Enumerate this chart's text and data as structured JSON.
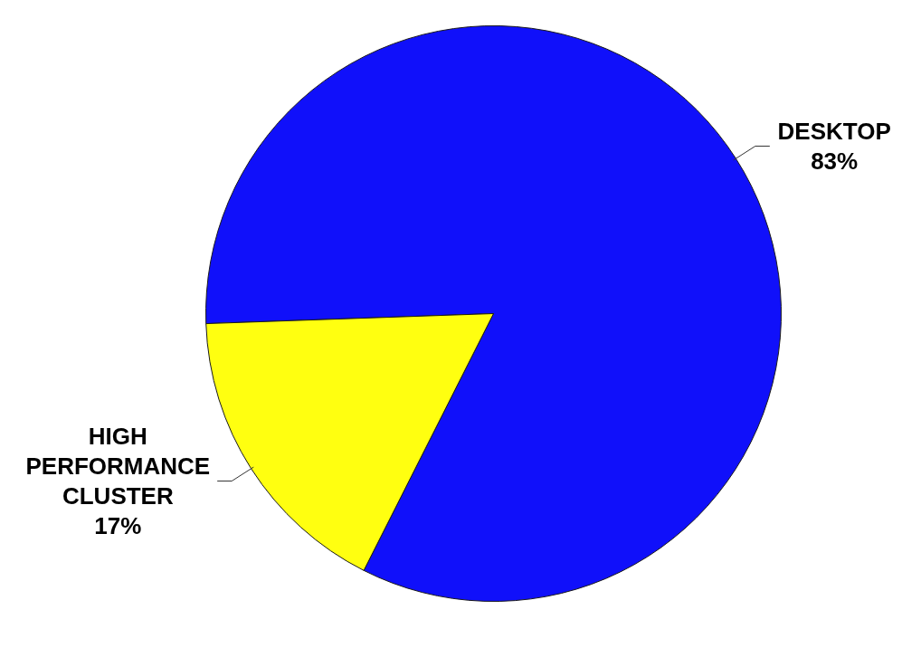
{
  "chart_data": {
    "type": "pie",
    "categories": [
      "DESKTOP",
      "HIGH PERFORMANCE CLUSTER"
    ],
    "values": [
      83,
      17
    ],
    "colors": [
      "#1010fa",
      "#ffff10"
    ],
    "value_labels": [
      "83%",
      "17%"
    ]
  }
}
